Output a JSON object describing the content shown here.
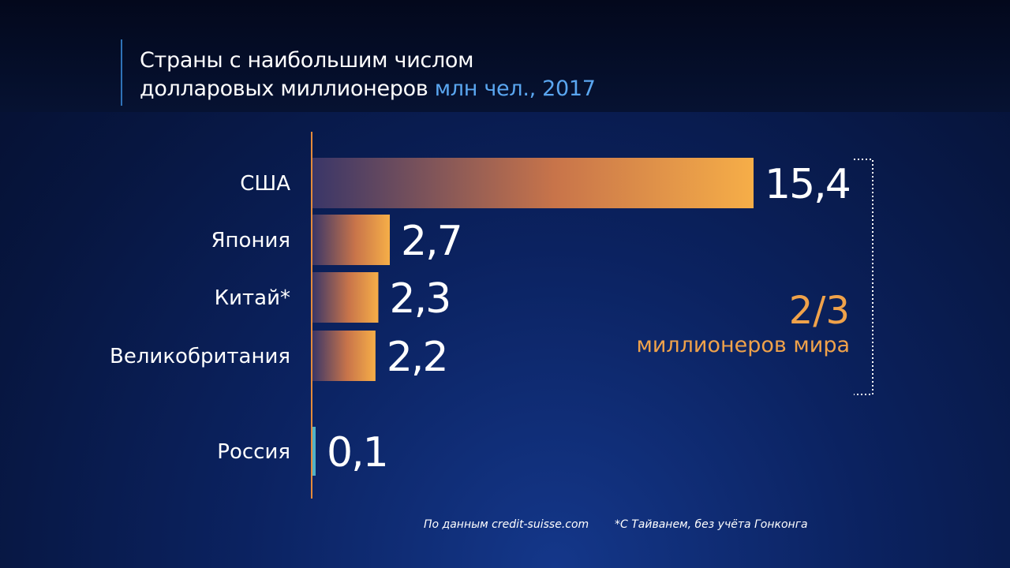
{
  "header": {
    "title_line1": "Страны с наибольшим числом",
    "title_line2": "долларовых миллионеров",
    "unit": "млн чел., 2017"
  },
  "annotation": {
    "share_value": "2/3",
    "share_label": "миллионеров мира"
  },
  "footnotes": {
    "source": "По данным credit-suisse.com",
    "note": "*С Тайванем, без учёта Гонконга"
  },
  "colors": {
    "bar_start": "#3a3668",
    "bar_end": "#f6ae48",
    "russia_bar": "#4fb2c8",
    "axis": "#e58b3a",
    "accent": "#f0a24a"
  },
  "chart_data": {
    "type": "bar",
    "orientation": "horizontal",
    "title": "Страны с наибольшим числом долларовых миллионеров",
    "unit": "млн чел., 2017",
    "categories": [
      "США",
      "Япония",
      "Китай*",
      "Великобритания",
      "Россия"
    ],
    "values": [
      15.4,
      2.7,
      2.3,
      2.2,
      0.1
    ],
    "value_labels": [
      "15,4",
      "2,7",
      "2,3",
      "2,2",
      "0,1"
    ],
    "xlim": [
      0,
      15.4
    ],
    "grid": false,
    "legend": "none"
  }
}
